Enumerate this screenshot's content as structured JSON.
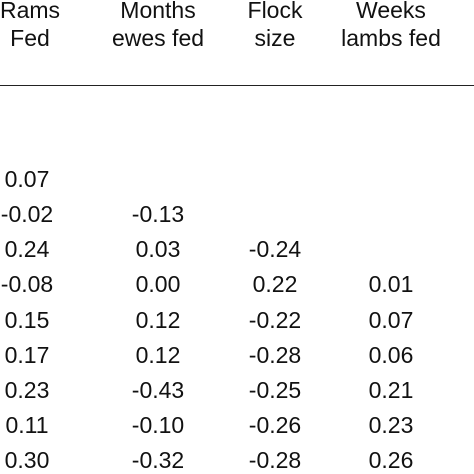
{
  "table": {
    "columns": [
      {
        "line1": "Rams",
        "line2": "Fed"
      },
      {
        "line1": "Months",
        "line2": "ewes fed"
      },
      {
        "line1": "Flock",
        "line2": "size"
      },
      {
        "line1": "Weeks",
        "line2": "lambs fed"
      }
    ],
    "rows": [
      [
        "0.07",
        "",
        "",
        ""
      ],
      [
        "-0.02",
        "-0.13",
        "",
        ""
      ],
      [
        "0.24",
        "0.03",
        "-0.24",
        ""
      ],
      [
        "-0.08",
        "0.00",
        "0.22",
        "0.01"
      ],
      [
        "0.15",
        "0.12",
        "-0.22",
        "0.07"
      ],
      [
        "0.17",
        "0.12",
        "-0.28",
        "0.06"
      ],
      [
        "0.23",
        "-0.43",
        "-0.25",
        "0.21"
      ],
      [
        "0.11",
        "-0.10",
        "-0.26",
        "0.23"
      ],
      [
        "0.30",
        "-0.32",
        "-0.28",
        "0.26"
      ]
    ]
  }
}
